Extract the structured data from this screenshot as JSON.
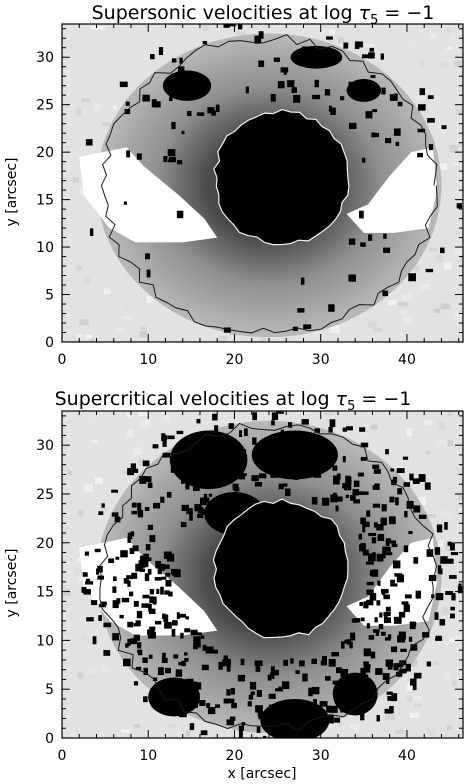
{
  "colors": {
    "background": "#ffffff",
    "frame": "#000000",
    "umbra": "#000000",
    "outer_contour": "#1a1a1a",
    "inner_contour": "#f2f2f2",
    "quiet_sun": "#e2e2e2",
    "bright_wedge": "#ffffff"
  },
  "chart_data": [
    {
      "type": "heatmap",
      "title": "Supersonic velocities at log τ₅ = −1",
      "title_parts": {
        "text": "Supersonic velocities at log ",
        "symbol": "τ",
        "subscript": "5",
        "rest": " = −1"
      },
      "xlabel": "",
      "ylabel": "y [arcsec]",
      "xlim": [
        0,
        46.5
      ],
      "ylim": [
        0,
        33.5
      ],
      "xticks": [
        "0",
        "10",
        "20",
        "30",
        "40"
      ],
      "yticks": [
        "0",
        "5",
        "10",
        "15",
        "20",
        "25",
        "30"
      ],
      "colormap": "grayscale (dark = high value)",
      "features": {
        "umbra_center": [
          25.5,
          17.3
        ],
        "umbra_radii": [
          7.8,
          7.0
        ],
        "penumbra_boundary_center": [
          24.0,
          16.5
        ],
        "penumbra_boundary_radii": [
          20.0,
          16.0
        ],
        "dark_patch_density": "low"
      }
    },
    {
      "type": "heatmap",
      "title": "Supercritical velocities at log τ₅ = −1",
      "title_parts": {
        "text": "Supercritical velocities at log ",
        "symbol": "τ",
        "subscript": "5",
        "rest": " = −1"
      },
      "xlabel": "x [arcsec]",
      "ylabel": "y [arcsec]",
      "xlim": [
        0,
        46.5
      ],
      "ylim": [
        0,
        33.5
      ],
      "xticks": [
        "0",
        "10",
        "20",
        "30",
        "40"
      ],
      "yticks": [
        "0",
        "5",
        "10",
        "15",
        "20",
        "25",
        "30"
      ],
      "colormap": "grayscale (dark = high value)",
      "features": {
        "umbra_center": [
          25.5,
          17.3
        ],
        "umbra_radii": [
          7.8,
          7.0
        ],
        "penumbra_boundary_center": [
          24.0,
          16.5
        ],
        "penumbra_boundary_radii": [
          20.0,
          16.0
        ],
        "dark_patch_density": "high"
      }
    }
  ]
}
